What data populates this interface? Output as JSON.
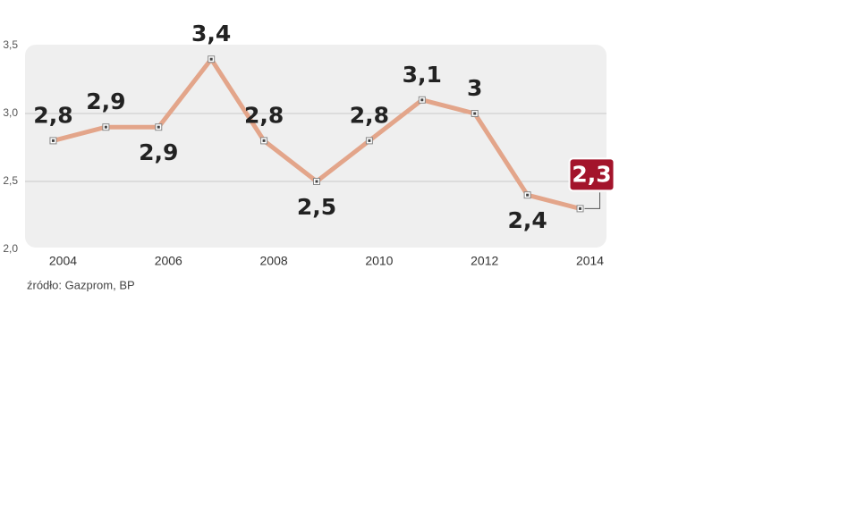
{
  "chart_data": {
    "type": "line",
    "x": [
      2004,
      2005,
      2006,
      2007,
      2008,
      2009,
      2010,
      2011,
      2012,
      2013,
      2014
    ],
    "values": [
      2.8,
      2.9,
      2.9,
      3.4,
      2.8,
      2.5,
      2.8,
      3.1,
      3,
      2.4,
      2.3
    ],
    "value_labels": [
      "2,8",
      "2,9",
      "2,9",
      "3,4",
      "2,8",
      "2,5",
      "2,8",
      "3,1",
      "3",
      "2,4",
      "2,3"
    ],
    "color": "#e3a58a",
    "highlight_color": "#a3142b",
    "xlim": [
      2003.5,
      2014.5
    ],
    "xticks": [
      2004,
      2006,
      2008,
      2010,
      2012,
      2014
    ],
    "ylim": [
      2.0,
      3.5
    ],
    "yticks": [
      {
        "value": 2.0,
        "label": "2,0"
      },
      {
        "value": 2.5,
        "label": "2,5"
      },
      {
        "value": 3.0,
        "label": "3,0"
      },
      {
        "value": 3.5,
        "label": "3,5"
      }
    ],
    "grid": true,
    "source": "źródło: Gazprom, BP"
  }
}
